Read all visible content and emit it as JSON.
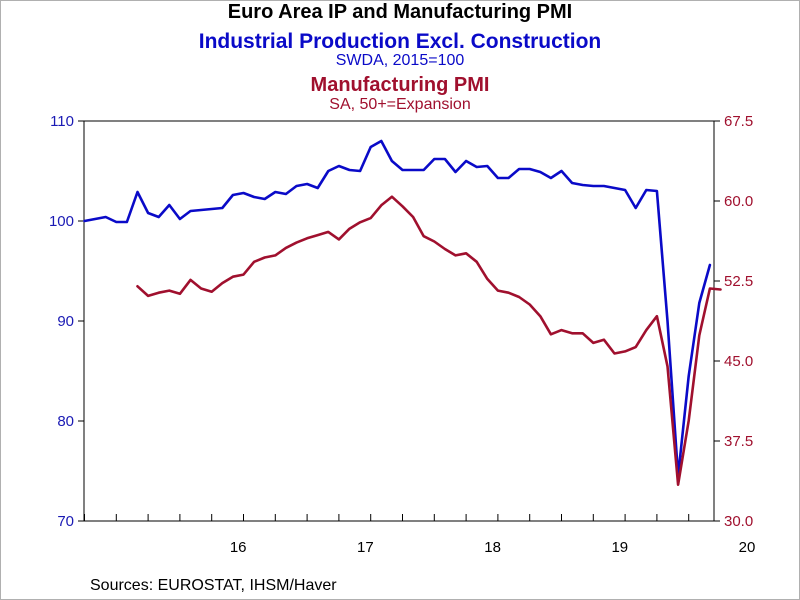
{
  "chart_data": {
    "type": "line",
    "title": "Euro Area IP and Manufacturing PMI",
    "source": "Sources:  EUROSTAT, IHSM/Haver",
    "x_start": "2015-04",
    "x_ticks": [
      "16",
      "17",
      "18",
      "19",
      "20"
    ],
    "left_axis": {
      "ylim": [
        70,
        110
      ],
      "ticks": [
        "70",
        "80",
        "90",
        "100",
        "110"
      ],
      "color": "#1a1ab4"
    },
    "right_axis": {
      "ylim": [
        30.0,
        67.5
      ],
      "ticks": [
        "30.0",
        "37.5",
        "45.0",
        "52.5",
        "60.0",
        "67.5"
      ],
      "color": "#a0102e"
    },
    "series": [
      {
        "name": "Industrial Production Excl. Construction",
        "note": "SWDA, 2015=100",
        "axis": "left",
        "color": "#0a0ac8",
        "start": "2015-04",
        "values": [
          100.0,
          100.2,
          100.4,
          99.9,
          99.9,
          102.9,
          100.8,
          100.4,
          101.6,
          100.2,
          101.0,
          101.1,
          101.2,
          101.3,
          102.6,
          102.8,
          102.4,
          102.2,
          102.9,
          102.7,
          103.5,
          103.7,
          103.3,
          105.0,
          105.5,
          105.1,
          105.0,
          107.4,
          108.0,
          106.0,
          105.1,
          105.1,
          105.1,
          106.2,
          106.2,
          104.9,
          106.0,
          105.4,
          105.5,
          104.3,
          104.3,
          105.2,
          105.2,
          104.9,
          104.3,
          105.0,
          103.8,
          103.6,
          103.5,
          103.5,
          103.3,
          103.1,
          101.3,
          103.1,
          103.0,
          90.0,
          74.5,
          84.5,
          91.8,
          95.6
        ]
      },
      {
        "name": "Manufacturing PMI",
        "note": "SA, 50+=Expansion",
        "axis": "right",
        "color": "#a0102e",
        "start": "2015-09",
        "values": [
          52.0,
          51.1,
          51.4,
          51.6,
          51.3,
          52.6,
          51.8,
          51.5,
          52.3,
          52.9,
          53.1,
          54.3,
          54.7,
          54.9,
          55.6,
          56.1,
          56.5,
          56.8,
          57.1,
          56.4,
          57.4,
          58.0,
          58.4,
          59.6,
          60.4,
          59.5,
          58.5,
          56.7,
          56.2,
          55.5,
          54.9,
          55.1,
          54.3,
          52.7,
          51.6,
          51.4,
          51.0,
          50.3,
          49.2,
          47.5,
          47.9,
          47.6,
          47.6,
          46.7,
          47.0,
          45.7,
          45.9,
          46.3,
          47.9,
          49.2,
          44.5,
          33.4,
          39.4,
          47.4,
          51.8,
          51.7
        ]
      }
    ]
  }
}
